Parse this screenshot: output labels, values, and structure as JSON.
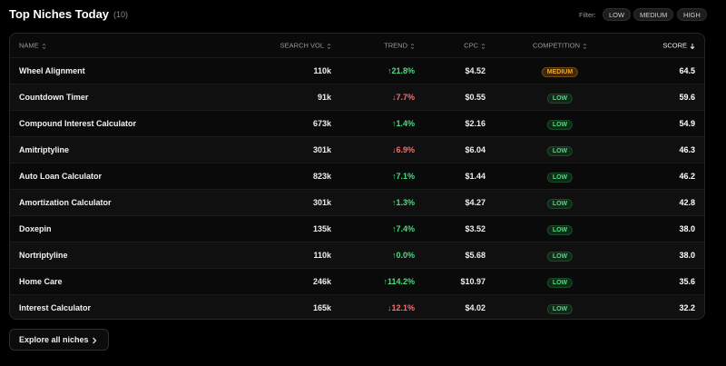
{
  "header": {
    "title": "Top Niches Today",
    "count": "(10)",
    "filter_label": "Filter:",
    "filters": [
      "LOW",
      "MEDIUM",
      "HIGH"
    ]
  },
  "table": {
    "columns": [
      "NAME",
      "SEARCH VOL",
      "TREND",
      "CPC",
      "COMPETITION",
      "SCORE"
    ],
    "rows": [
      [
        "Wheel Alignment",
        "110k",
        "↑21.8%",
        "$4.52",
        "MEDIUM",
        "64.5"
      ],
      [
        "Countdown Timer",
        "91k",
        "↓7.7%",
        "$0.55",
        "LOW",
        "59.6"
      ],
      [
        "Compound Interest Calculator",
        "673k",
        "↑1.4%",
        "$2.16",
        "LOW",
        "54.9"
      ],
      [
        "Amitriptyline",
        "301k",
        "↓6.9%",
        "$6.04",
        "LOW",
        "46.3"
      ],
      [
        "Auto Loan Calculator",
        "823k",
        "↑7.1%",
        "$1.44",
        "LOW",
        "46.2"
      ],
      [
        "Amortization Calculator",
        "301k",
        "↑1.3%",
        "$4.27",
        "LOW",
        "42.8"
      ],
      [
        "Doxepin",
        "135k",
        "↑7.4%",
        "$3.52",
        "LOW",
        "38.0"
      ],
      [
        "Nortriptyline",
        "110k",
        "↑0.0%",
        "$5.68",
        "LOW",
        "38.0"
      ],
      [
        "Home Care",
        "246k",
        "↑114.2%",
        "$10.97",
        "LOW",
        "35.6"
      ],
      [
        "Interest Calculator",
        "165k",
        "↓12.1%",
        "$4.02",
        "LOW",
        "32.2"
      ]
    ]
  },
  "footer": {
    "button": "Explore all niches"
  }
}
